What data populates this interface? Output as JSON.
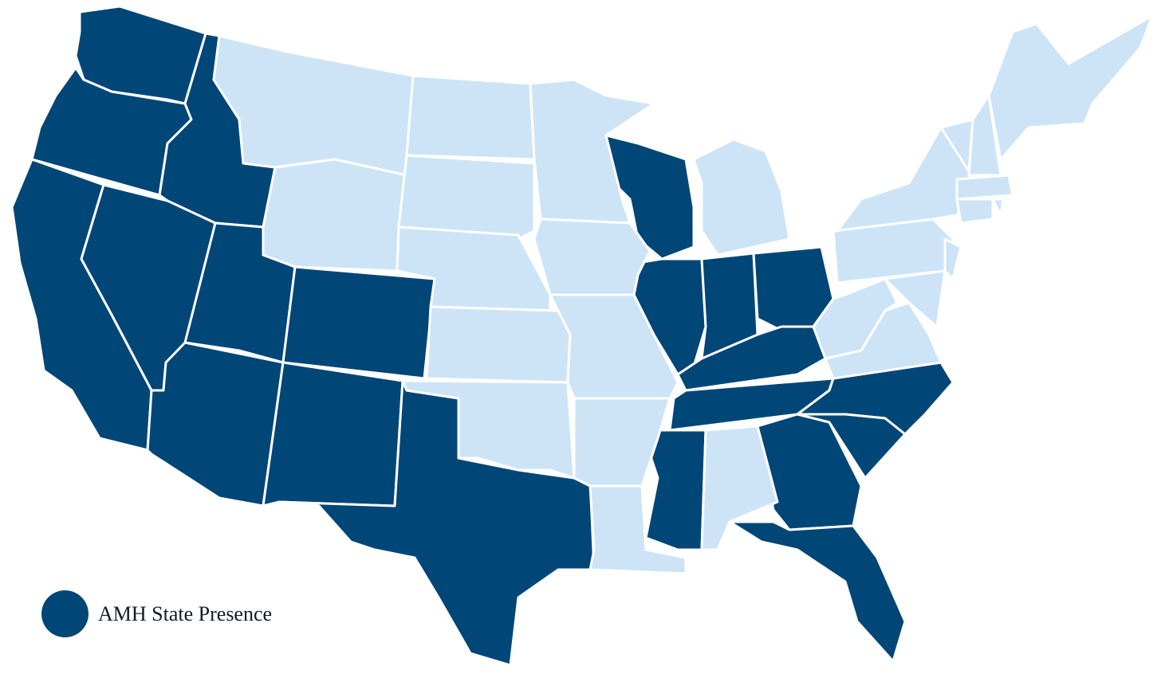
{
  "colors": {
    "presence": "#004677",
    "no_presence": "#cde4f7",
    "border": "#ffffff"
  },
  "legend": {
    "label": "AMH State Presence"
  },
  "states": {
    "WA": true,
    "OR": true,
    "CA": true,
    "ID": true,
    "NV": true,
    "UT": true,
    "AZ": true,
    "CO": true,
    "NM": true,
    "TX": true,
    "WI": true,
    "IL": true,
    "IN": true,
    "OH": true,
    "KY": true,
    "TN": true,
    "MS": true,
    "GA": true,
    "FL": true,
    "NC": true,
    "SC": true,
    "MT": false,
    "WY": false,
    "ND": false,
    "SD": false,
    "NE": false,
    "KS": false,
    "OK": false,
    "MN": false,
    "IA": false,
    "MO": false,
    "AR": false,
    "LA": false,
    "AL": false,
    "MI": false,
    "PA": false,
    "NY": false,
    "VA": false,
    "WV": false,
    "MD": false,
    "NJ": false,
    "VT": false,
    "NH": false,
    "MA": false,
    "CT": false,
    "RI": false,
    "ME": false
  }
}
